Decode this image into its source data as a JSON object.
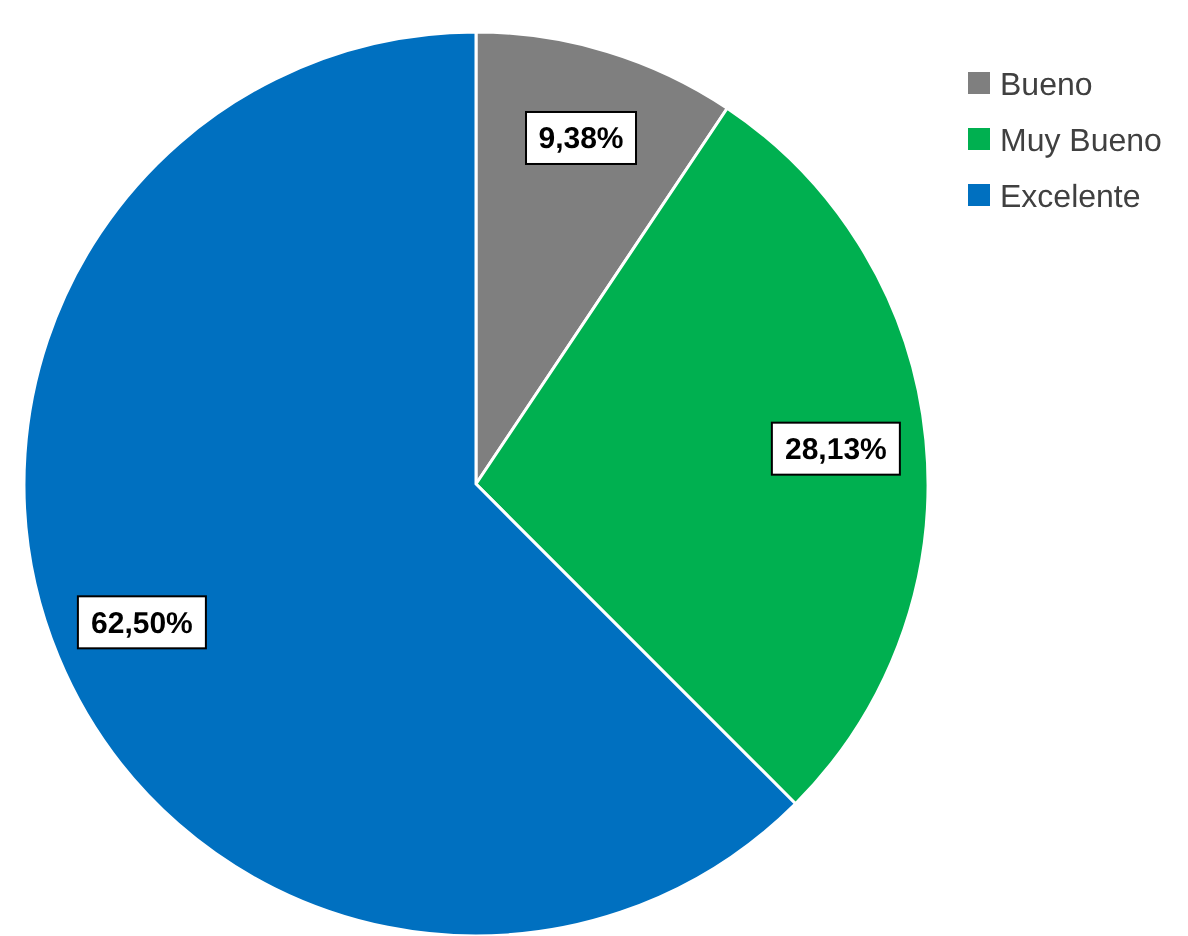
{
  "chart_data": {
    "type": "pie",
    "categories": [
      "Bueno",
      "Muy Bueno",
      "Excelente"
    ],
    "values": [
      9.38,
      28.13,
      62.5
    ],
    "value_labels": [
      "9,38%",
      "28,13%",
      "62,50%"
    ],
    "colors": [
      "#7f7f7f",
      "#00b050",
      "#0070c0"
    ],
    "legend": "top right"
  }
}
